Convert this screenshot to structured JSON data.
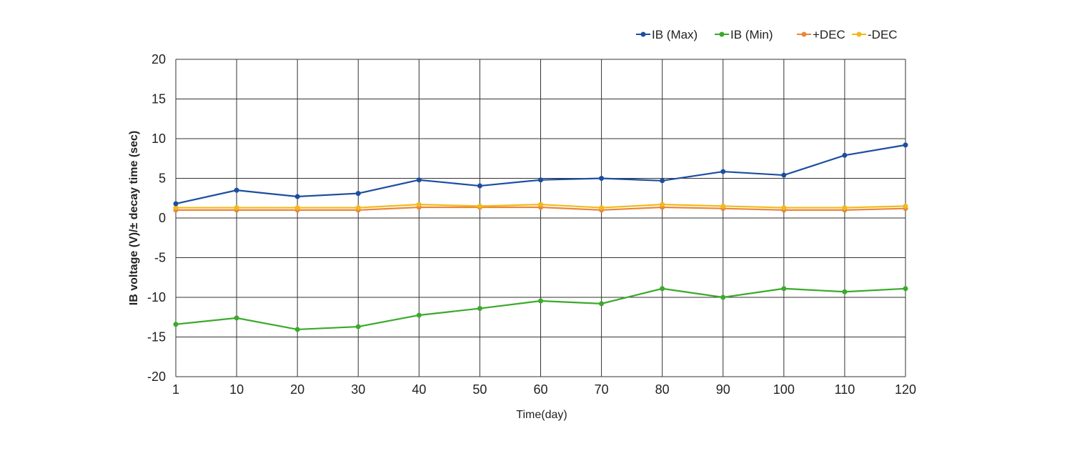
{
  "chart_data": {
    "type": "line",
    "title": "",
    "xlabel": "Time(day)",
    "ylabel": "IB voltage (V)/± decay time (sec)",
    "x": [
      1,
      10,
      20,
      30,
      40,
      50,
      60,
      70,
      80,
      90,
      100,
      110,
      120
    ],
    "xticks": [
      "1",
      "10",
      "20",
      "30",
      "40",
      "50",
      "60",
      "70",
      "80",
      "90",
      "100",
      "110",
      "120"
    ],
    "ylim": [
      -20,
      20
    ],
    "yticks": [
      20,
      15,
      10,
      5,
      0,
      -5,
      -10,
      -15,
      -20
    ],
    "grid": true,
    "legend_position": "top-right",
    "series": [
      {
        "name": "IB (Max)",
        "color": "#1c4ea0",
        "values": [
          1.8,
          3.5,
          2.7,
          3.1,
          4.8,
          4.05,
          4.8,
          5.0,
          4.7,
          5.85,
          5.4,
          7.9,
          9.2
        ]
      },
      {
        "name": "IB (Min)",
        "color": "#3aaa2a",
        "values": [
          -13.4,
          -12.6,
          -14.05,
          -13.7,
          -12.25,
          -11.4,
          -10.45,
          -10.8,
          -8.9,
          -10.0,
          -8.9,
          -9.3,
          -8.9
        ]
      },
      {
        "name": "+DEC",
        "color": "#e8873a",
        "values": [
          1.0,
          1.0,
          1.0,
          1.0,
          1.35,
          1.35,
          1.35,
          1.0,
          1.35,
          1.2,
          1.0,
          1.0,
          1.2
        ]
      },
      {
        "name": "-DEC",
        "color": "#f2b91a",
        "values": [
          1.3,
          1.3,
          1.3,
          1.3,
          1.7,
          1.5,
          1.7,
          1.3,
          1.7,
          1.5,
          1.3,
          1.3,
          1.5
        ]
      }
    ]
  }
}
